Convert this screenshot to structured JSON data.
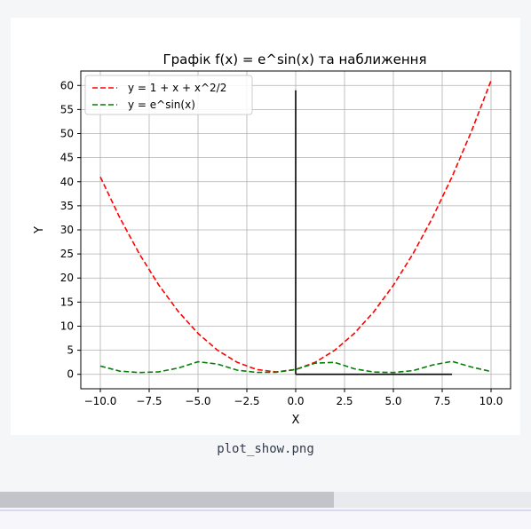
{
  "file": {
    "name": "plot_show.png"
  },
  "chart_data": {
    "type": "line",
    "title": "Графік f(x) = e^sin(x) та наближення",
    "xlabel": "X",
    "ylabel": "Y",
    "xlim": [
      -11,
      11
    ],
    "ylim": [
      -3,
      63
    ],
    "x_ticks": [
      -10,
      -7.5,
      -5,
      -2.5,
      0,
      2.5,
      5,
      7.5,
      10
    ],
    "x_tick_labels": [
      "−10.0",
      "−7.5",
      "−5.0",
      "−2.5",
      "0.0",
      "2.5",
      "5.0",
      "7.5",
      "10.0"
    ],
    "y_ticks": [
      0,
      5,
      10,
      15,
      20,
      25,
      30,
      35,
      40,
      45,
      50,
      55,
      60
    ],
    "y_tick_labels": [
      "0",
      "5",
      "10",
      "15",
      "20",
      "25",
      "30",
      "35",
      "40",
      "45",
      "50",
      "55",
      "60"
    ],
    "grid": true,
    "legend_position": "top-left",
    "series": [
      {
        "name": "y = 1 + x + x^2/2",
        "color": "#ff0000",
        "style": "dashed",
        "x": [
          -10,
          -9,
          -8,
          -7,
          -6,
          -5,
          -4,
          -3,
          -2,
          -1,
          0,
          1,
          2,
          3,
          4,
          5,
          6,
          7,
          8,
          9,
          10
        ],
        "y": [
          41,
          32.5,
          25,
          18.5,
          13,
          8.5,
          5,
          2.5,
          1,
          0.5,
          1,
          2.5,
          5,
          8.5,
          13,
          18.5,
          25,
          32.5,
          41,
          50.5,
          61
        ]
      },
      {
        "name": "y = e^sin(x)",
        "color": "#008000",
        "style": "dashed",
        "x": [
          -10,
          -9,
          -8,
          -7,
          -6,
          -5,
          -4,
          -3,
          -2,
          -1,
          0,
          1,
          2,
          3,
          4,
          5,
          6,
          7,
          8,
          9,
          10
        ],
        "y": [
          1.72,
          0.66,
          0.37,
          0.52,
          1.32,
          2.61,
          2.13,
          0.87,
          0.4,
          0.43,
          1.0,
          2.32,
          2.48,
          1.15,
          0.47,
          0.38,
          0.76,
          1.93,
          2.69,
          1.51,
          0.58
        ]
      }
    ],
    "reference_lines": [
      {
        "x": [
          0,
          0
        ],
        "y": [
          0,
          59
        ],
        "color": "#000000"
      },
      {
        "x": [
          0,
          8
        ],
        "y": [
          0,
          0
        ],
        "color": "#000000"
      }
    ]
  }
}
